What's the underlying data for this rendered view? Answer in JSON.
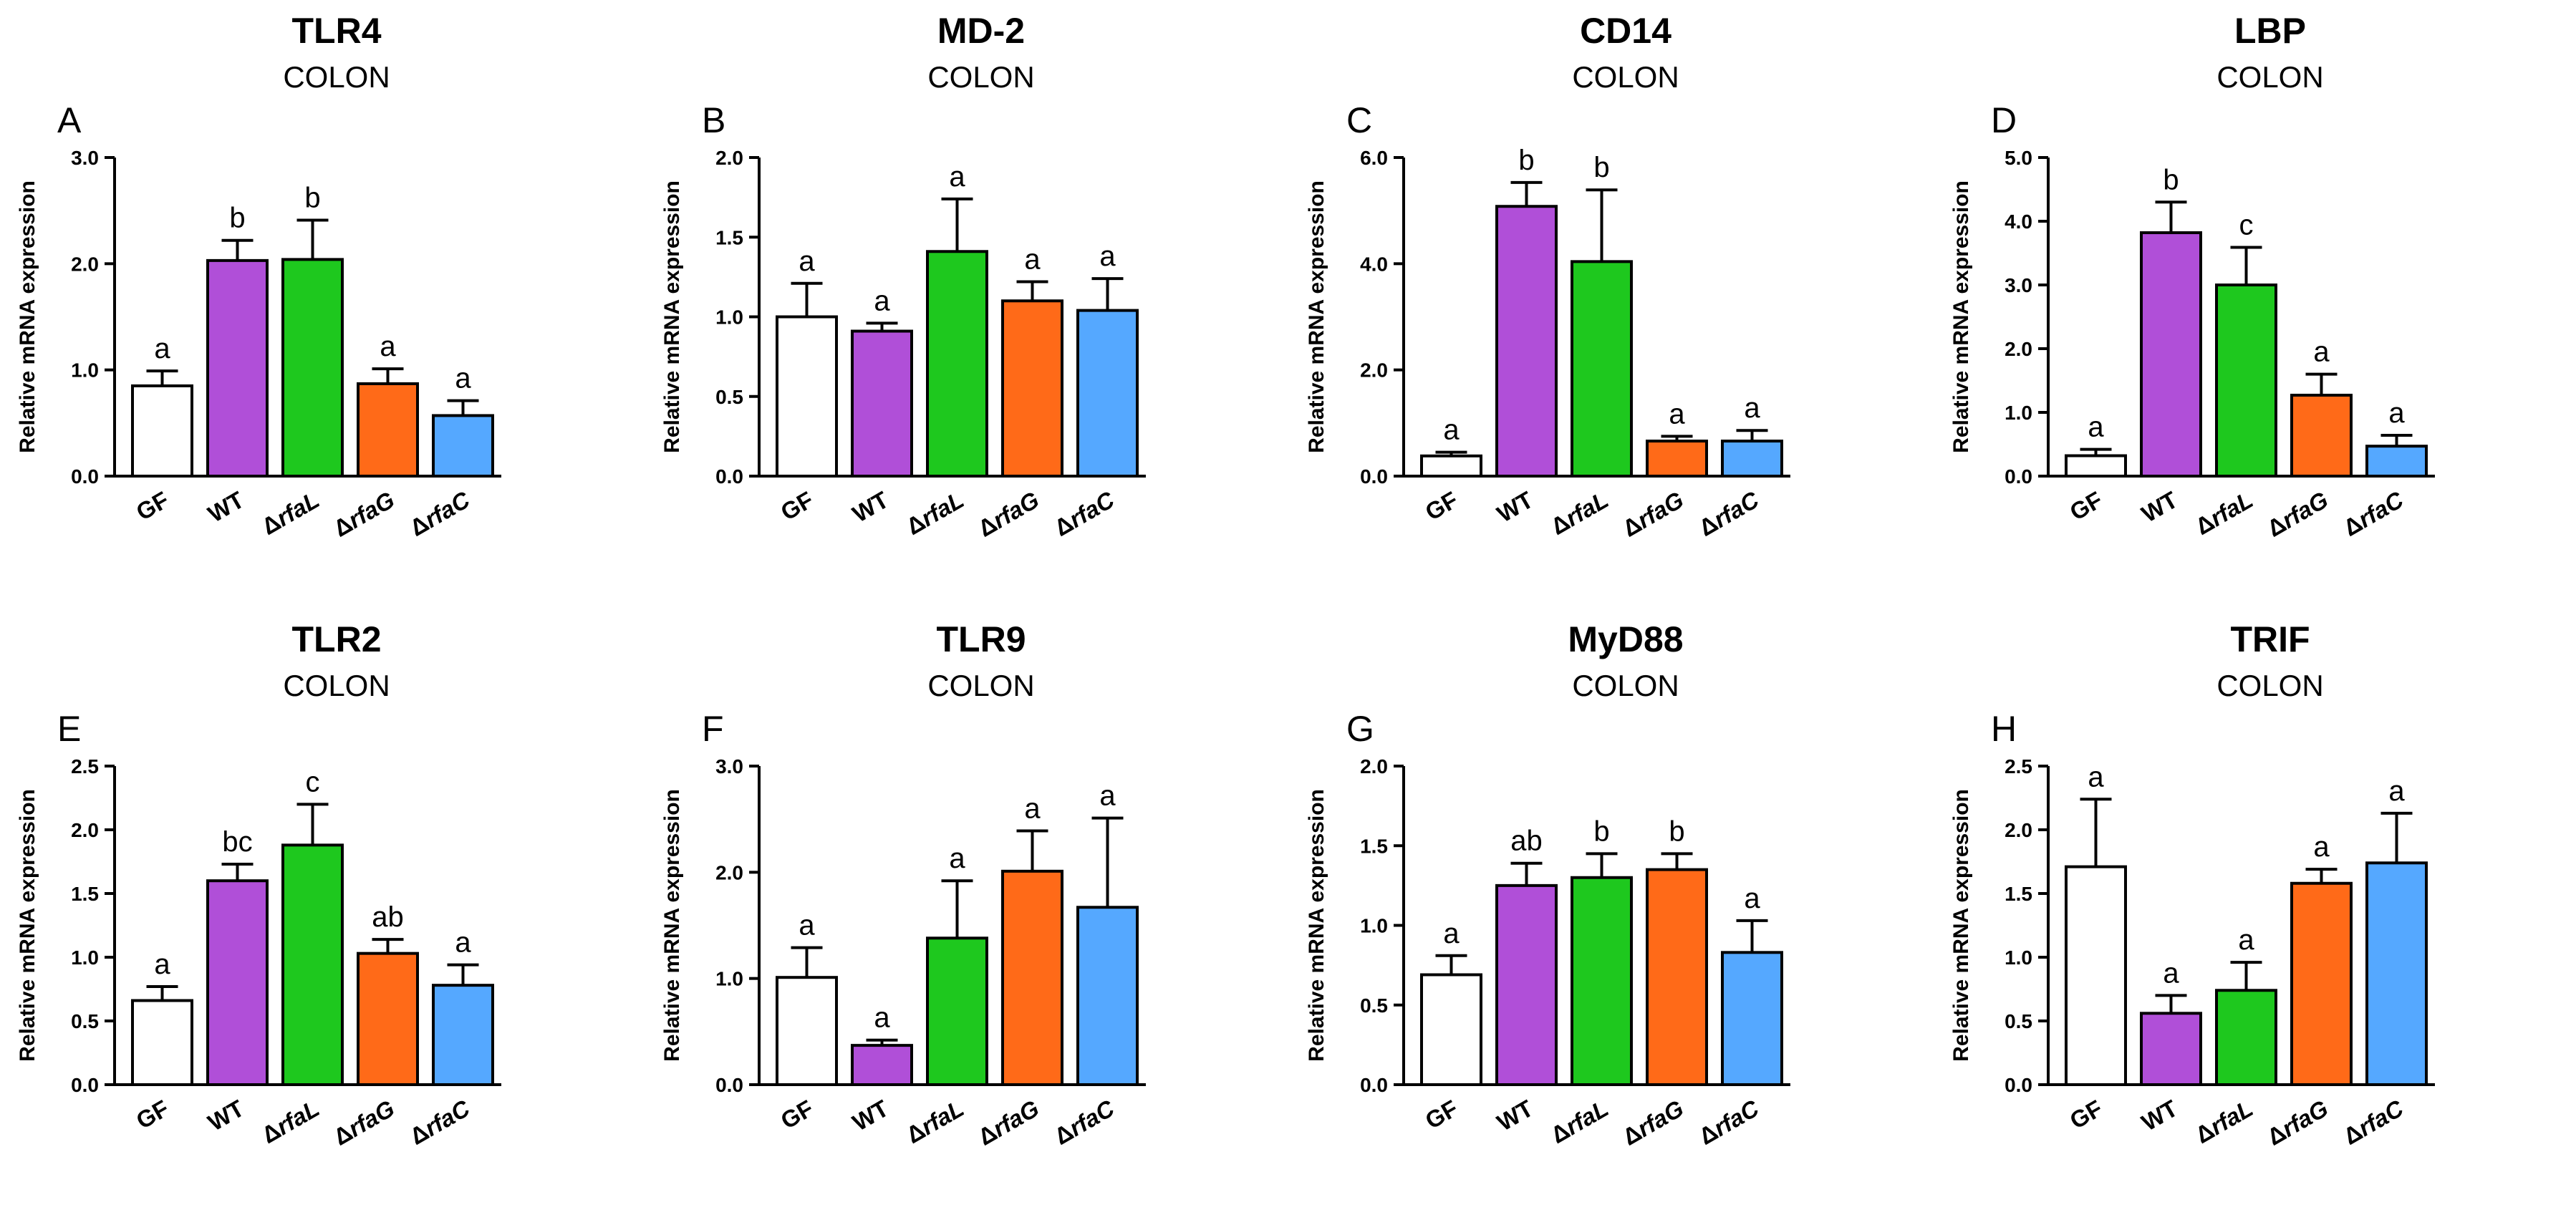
{
  "figure": {
    "ylabel": "Relative mRNA expression",
    "colors": [
      "#ffffff",
      "#b04fd8",
      "#1ec81e",
      "#ff6a18",
      "#55a8ff"
    ]
  },
  "chart_data": [
    {
      "type": "bar",
      "panel": "A",
      "title": "TLR4",
      "subtitle": "COLON",
      "ylabel": "Relative mRNA expression",
      "categories": [
        "GF",
        "WT",
        "ΔrfaL",
        "ΔrfaG",
        "ΔrfaC"
      ],
      "values": [
        0.85,
        2.03,
        2.04,
        0.87,
        0.57
      ],
      "errors": [
        0.14,
        0.19,
        0.37,
        0.14,
        0.14
      ],
      "significance": [
        "a",
        "b",
        "b",
        "a",
        "a"
      ],
      "ylim": [
        0,
        3.0
      ],
      "yticks": [
        "0.0",
        "1.0",
        "2.0",
        "3.0"
      ]
    },
    {
      "type": "bar",
      "panel": "B",
      "title": "MD-2",
      "subtitle": "COLON",
      "ylabel": "Relative mRNA expression",
      "categories": [
        "GF",
        "WT",
        "ΔrfaL",
        "ΔrfaG",
        "ΔrfaC"
      ],
      "values": [
        1.0,
        0.91,
        1.41,
        1.1,
        1.04
      ],
      "errors": [
        0.21,
        0.05,
        0.33,
        0.12,
        0.2
      ],
      "significance": [
        "a",
        "a",
        "a",
        "a",
        "a"
      ],
      "ylim": [
        0,
        2.0
      ],
      "yticks": [
        "0.0",
        "0.5",
        "1.0",
        "1.5",
        "2.0"
      ]
    },
    {
      "type": "bar",
      "panel": "C",
      "title": "CD14",
      "subtitle": "COLON",
      "ylabel": "Relative mRNA expression",
      "categories": [
        "GF",
        "WT",
        "ΔrfaL",
        "ΔrfaG",
        "ΔrfaC"
      ],
      "values": [
        0.38,
        5.08,
        4.04,
        0.66,
        0.66
      ],
      "errors": [
        0.07,
        0.45,
        1.35,
        0.09,
        0.2
      ],
      "significance": [
        "a",
        "b",
        "b",
        "a",
        "a"
      ],
      "ylim": [
        0,
        6.0
      ],
      "yticks": [
        "0.0",
        "2.0",
        "4.0",
        "6.0"
      ]
    },
    {
      "type": "bar",
      "panel": "D",
      "title": "LBP",
      "subtitle": "COLON",
      "ylabel": "Relative mRNA expression",
      "categories": [
        "GF",
        "WT",
        "ΔrfaL",
        "ΔrfaG",
        "ΔrfaC"
      ],
      "values": [
        0.32,
        3.82,
        3.0,
        1.27,
        0.47
      ],
      "errors": [
        0.1,
        0.48,
        0.59,
        0.33,
        0.17
      ],
      "significance": [
        "a",
        "b",
        "c",
        "a",
        "a"
      ],
      "ylim": [
        0,
        5.0
      ],
      "yticks": [
        "0.0",
        "1.0",
        "2.0",
        "3.0",
        "4.0",
        "5.0"
      ]
    },
    {
      "type": "bar",
      "panel": "E",
      "title": "TLR2",
      "subtitle": "COLON",
      "ylabel": "Relative mRNA expression",
      "categories": [
        "GF",
        "WT",
        "ΔrfaL",
        "ΔrfaG",
        "ΔrfaC"
      ],
      "values": [
        0.66,
        1.6,
        1.88,
        1.03,
        0.78
      ],
      "errors": [
        0.11,
        0.13,
        0.32,
        0.11,
        0.16
      ],
      "significance": [
        "a",
        "bc",
        "c",
        "ab",
        "a"
      ],
      "ylim": [
        0,
        2.5
      ],
      "yticks": [
        "0.0",
        "0.5",
        "1.0",
        "1.5",
        "2.0",
        "2.5"
      ]
    },
    {
      "type": "bar",
      "panel": "F",
      "title": "TLR9",
      "subtitle": "COLON",
      "ylabel": "Relative mRNA expression",
      "categories": [
        "GF",
        "WT",
        "ΔrfaL",
        "ΔrfaG",
        "ΔrfaC"
      ],
      "values": [
        1.01,
        0.37,
        1.38,
        2.01,
        1.67
      ],
      "errors": [
        0.28,
        0.05,
        0.54,
        0.38,
        0.84
      ],
      "significance": [
        "a",
        "a",
        "a",
        "a",
        "a"
      ],
      "ylim": [
        0,
        3.0
      ],
      "yticks": [
        "0.0",
        "1.0",
        "2.0",
        "3.0"
      ]
    },
    {
      "type": "bar",
      "panel": "G",
      "title": "MyD88",
      "subtitle": "COLON",
      "ylabel": "Relative mRNA expression",
      "categories": [
        "GF",
        "WT",
        "ΔrfaL",
        "ΔrfaG",
        "ΔrfaC"
      ],
      "values": [
        0.69,
        1.25,
        1.3,
        1.35,
        0.83
      ],
      "errors": [
        0.12,
        0.14,
        0.15,
        0.1,
        0.2
      ],
      "significance": [
        "a",
        "ab",
        "b",
        "b",
        "a"
      ],
      "ylim": [
        0,
        2.0
      ],
      "yticks": [
        "0.0",
        "0.5",
        "1.0",
        "1.5",
        "2.0"
      ]
    },
    {
      "type": "bar",
      "panel": "H",
      "title": "TRIF",
      "subtitle": "COLON",
      "ylabel": "Relative mRNA expression",
      "categories": [
        "GF",
        "WT",
        "ΔrfaL",
        "ΔrfaG",
        "ΔrfaC"
      ],
      "values": [
        1.71,
        0.56,
        0.74,
        1.58,
        1.74
      ],
      "errors": [
        0.53,
        0.14,
        0.22,
        0.11,
        0.39
      ],
      "significance": [
        "a",
        "a",
        "a",
        "a",
        "a"
      ],
      "ylim": [
        0,
        2.5
      ],
      "yticks": [
        "0.0",
        "0.5",
        "1.0",
        "1.5",
        "2.0",
        "2.5"
      ]
    }
  ]
}
